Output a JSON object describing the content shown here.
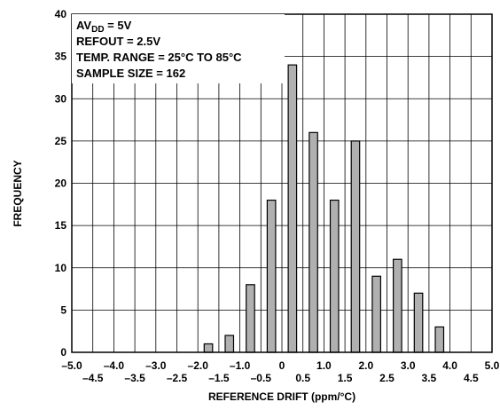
{
  "chart_data": {
    "type": "bar",
    "title": "",
    "xlabel": "REFERENCE DRIFT (ppm/°C)",
    "ylabel": "FREQUENCY",
    "xlim": [
      -5.0,
      5.0
    ],
    "ylim": [
      0,
      40
    ],
    "grid": true,
    "x_ticks_upper": [
      "–5.0",
      "–4.0",
      "–3.0",
      "–2.0",
      "–1.0",
      "0",
      "1.0",
      "2.0",
      "3.0",
      "4.0",
      "5.0"
    ],
    "x_ticks_lower": [
      "–4.5",
      "–3.5",
      "–2.5",
      "–1.5",
      "–0.5",
      "0.5",
      "1.5",
      "2.5",
      "3.5",
      "4.5"
    ],
    "y_ticks": [
      "0",
      "5",
      "10",
      "15",
      "20",
      "25",
      "30",
      "35",
      "40"
    ],
    "bar_color": "#b0b0b0",
    "x": [
      -1.75,
      -1.25,
      -0.75,
      -0.25,
      0.25,
      0.75,
      1.25,
      1.75,
      2.25,
      2.75,
      3.25,
      3.75
    ],
    "values": [
      1,
      2,
      8,
      18,
      34,
      26,
      18,
      25,
      9,
      11,
      7,
      3
    ],
    "annotations": {
      "line1_main": "AV",
      "line1_sub": "DD",
      "line1_rest": " = 5V",
      "line2": "REFOUT = 2.5V",
      "line3": "TEMP. RANGE = 25°C TO 85°C",
      "line4": "SAMPLE SIZE = 162"
    }
  }
}
